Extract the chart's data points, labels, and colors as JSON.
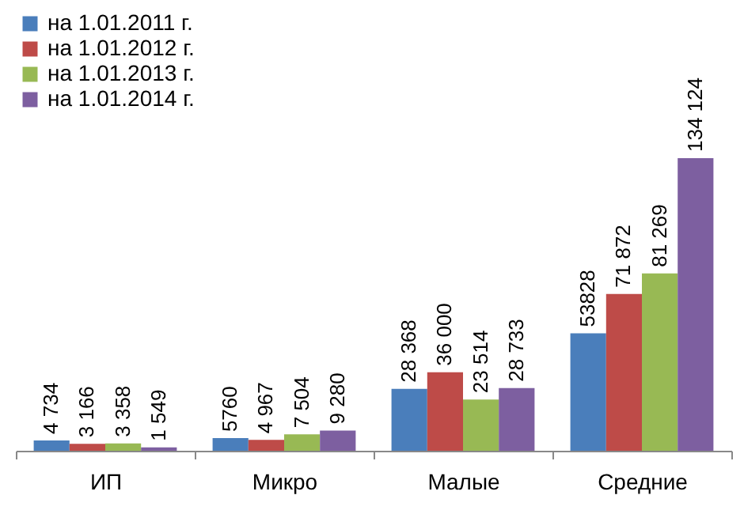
{
  "chart_data": {
    "type": "bar",
    "categories": [
      "ИП",
      "Микро",
      "Малые",
      "Средние"
    ],
    "tick_labels": "x",
    "legend": "top left",
    "grid": false,
    "series": [
      {
        "name": "на 1.01.2011 г.",
        "color": "#4a7ebb",
        "values": [
          4734,
          5760,
          28368,
          53828
        ],
        "value_labels": [
          "4 734",
          "5760",
          "28 368",
          "53828"
        ]
      },
      {
        "name": "на 1.01.2012 г.",
        "color": "#be4b48",
        "values": [
          3166,
          4967,
          36000,
          71872
        ],
        "value_labels": [
          "3 166",
          "4 967",
          "36 000",
          "71 872"
        ]
      },
      {
        "name": "на 1.01.2013 г.",
        "color": "#98b954",
        "values": [
          3358,
          7504,
          23514,
          81269
        ],
        "value_labels": [
          "3 358",
          "7 504",
          "23 514",
          "81 269"
        ]
      },
      {
        "name": "на 1.01.2014 г.",
        "color": "#7d5fa0",
        "values": [
          1549,
          9280,
          28733,
          134124
        ],
        "value_labels": [
          "1 549",
          "9 280",
          "28 733",
          "134 124"
        ]
      }
    ]
  }
}
